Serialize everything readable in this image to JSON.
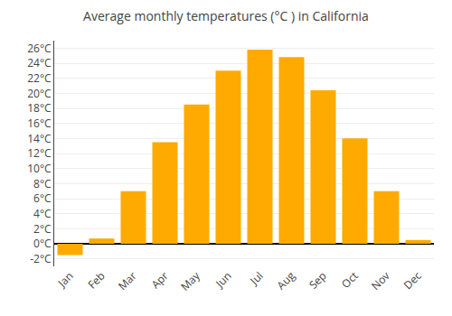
{
  "chart_data": {
    "type": "bar",
    "title": "Average monthly temperatures (°C ) in California",
    "categories": [
      "Jan",
      "Feb",
      "Mar",
      "Apr",
      "May",
      "Jun",
      "Jul",
      "Aug",
      "Sep",
      "Oct",
      "Nov",
      "Dec"
    ],
    "values": [
      -1.5,
      0.7,
      7.0,
      13.5,
      18.5,
      23.0,
      25.8,
      24.8,
      20.4,
      14.0,
      7.0,
      0.5
    ],
    "color": "#FFAA00",
    "ylim": [
      -3,
      27
    ],
    "yticks": [
      {
        "value": -2,
        "label": "-2°C"
      },
      {
        "value": 0,
        "label": "0°C"
      },
      {
        "value": 2,
        "label": "2°C"
      },
      {
        "value": 4,
        "label": "4°C"
      },
      {
        "value": 6,
        "label": "6°C"
      },
      {
        "value": 8,
        "label": "8°C"
      },
      {
        "value": 10,
        "label": "10°C"
      },
      {
        "value": 12,
        "label": "12°C"
      },
      {
        "value": 14,
        "label": "14°C"
      },
      {
        "value": 16,
        "label": "16°C"
      },
      {
        "value": 18,
        "label": "18°C"
      },
      {
        "value": 20,
        "label": "20°C"
      },
      {
        "value": 22,
        "label": "22°C"
      },
      {
        "value": 24,
        "label": "24°C"
      },
      {
        "value": 26,
        "label": "26°C"
      }
    ],
    "grid": true
  }
}
